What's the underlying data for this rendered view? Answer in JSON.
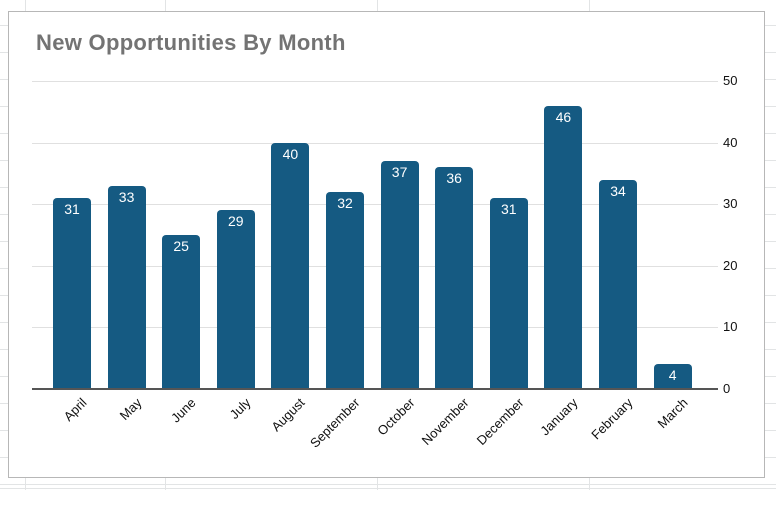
{
  "chart_data": {
    "type": "bar",
    "title": "New Opportunities By Month",
    "categories": [
      "April",
      "May",
      "June",
      "July",
      "August",
      "September",
      "October",
      "November",
      "December",
      "January",
      "February",
      "March"
    ],
    "values": [
      31,
      33,
      25,
      29,
      40,
      32,
      37,
      36,
      31,
      46,
      34,
      4
    ],
    "xlabel": "",
    "ylabel": "",
    "ylim": [
      0,
      50
    ],
    "yticks": [
      0,
      10,
      20,
      30,
      40,
      50
    ],
    "y_axis_position": "right",
    "x_tick_rotation_deg": 45,
    "grid": "horizontal",
    "legend": "none",
    "data_labels": "inside-top",
    "colors": {
      "bar": "#155a82",
      "bar_value_label": "#ffffff",
      "gridline": "#e0e0e0",
      "axis_line": "#555555",
      "title": "#737373",
      "tick_label": "#111111",
      "card_border": "#b7b7b7",
      "sheet_gridline": "#e2e4e5"
    }
  }
}
